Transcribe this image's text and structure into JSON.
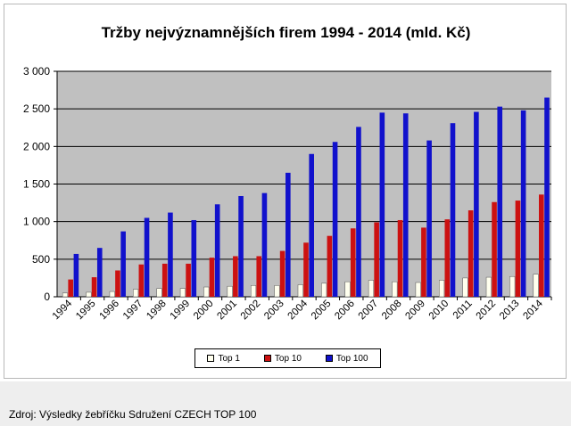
{
  "chart_data": {
    "type": "bar",
    "title": "Tržby nejvýznamnějších firem 1994 - 2014 (mld. Kč)",
    "xlabel": "",
    "ylabel": "",
    "ylim": [
      0,
      3000
    ],
    "yticks": [
      "0",
      "500",
      "1 000",
      "1 500",
      "2 000",
      "2 500",
      "3 000"
    ],
    "ytick_values": [
      0,
      500,
      1000,
      1500,
      2000,
      2500,
      3000
    ],
    "grid": true,
    "legend_position": "bottom",
    "categories": [
      "1994",
      "1995",
      "1996",
      "1997",
      "1998",
      "1999",
      "2000",
      "2001",
      "2002",
      "2003",
      "2004",
      "2005",
      "2006",
      "2007",
      "2008",
      "2009",
      "2010",
      "2011",
      "2012",
      "2013",
      "2014"
    ],
    "series": [
      {
        "name": "Top 1",
        "color": "#ffffee",
        "values": [
          50,
          60,
          70,
          100,
          110,
          110,
          130,
          140,
          150,
          150,
          160,
          180,
          200,
          220,
          200,
          190,
          220,
          250,
          260,
          270,
          300
        ]
      },
      {
        "name": "Top 10",
        "color": "#cc1111",
        "values": [
          230,
          260,
          350,
          430,
          440,
          440,
          520,
          540,
          540,
          610,
          720,
          810,
          910,
          990,
          1020,
          920,
          1030,
          1150,
          1260,
          1280,
          1360
        ]
      },
      {
        "name": "Top 100",
        "color": "#1111cc",
        "values": [
          570,
          650,
          870,
          1050,
          1120,
          1020,
          1230,
          1340,
          1380,
          1650,
          1900,
          2060,
          2260,
          2450,
          2440,
          2080,
          2310,
          2460,
          2530,
          2480,
          2650
        ]
      }
    ]
  },
  "source_note": "Zdroj:  Výsledky žebříčku  Sdružení  CZECH  TOP 100"
}
